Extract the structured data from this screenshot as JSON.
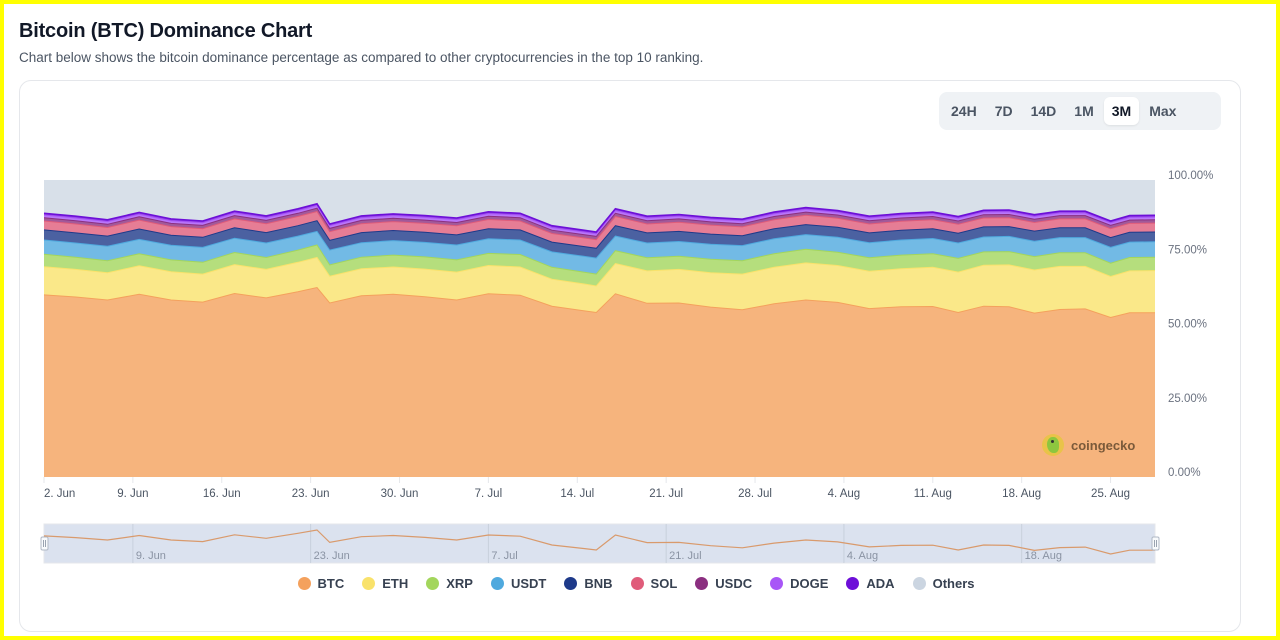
{
  "header": {
    "title": "Bitcoin (BTC) Dominance Chart",
    "subtitle": "Chart below shows the bitcoin dominance percentage as compared to other cryptocurrencies in the top 10 ranking."
  },
  "range_buttons": [
    {
      "label": "24H",
      "active": false
    },
    {
      "label": "7D",
      "active": false
    },
    {
      "label": "14D",
      "active": false
    },
    {
      "label": "1M",
      "active": false
    },
    {
      "label": "3M",
      "active": true
    },
    {
      "label": "Max",
      "active": false
    }
  ],
  "watermark": {
    "icon": "coingecko-logo-icon",
    "text": "coingecko"
  },
  "navigator": {
    "labels": [
      "9. Jun",
      "23. Jun",
      "7. Jul",
      "21. Jul",
      "4. Aug",
      "18. Aug"
    ],
    "range_start_fraction": 0.0,
    "range_end_fraction": 1.0
  },
  "chart_data": {
    "type": "area",
    "stacked": true,
    "title": "Bitcoin (BTC) Dominance Chart",
    "xlabel": "",
    "ylabel": "",
    "ylim": [
      0,
      100
    ],
    "y_ticks": [
      "0.00%",
      "25.00%",
      "50.00%",
      "75.00%",
      "100.00%"
    ],
    "y_tick_values": [
      0,
      25,
      50,
      75,
      100
    ],
    "x_ticks": [
      "2. Jun",
      "9. Jun",
      "16. Jun",
      "23. Jun",
      "30. Jun",
      "7. Jul",
      "14. Jul",
      "21. Jul",
      "28. Jul",
      "4. Aug",
      "11. Aug",
      "18. Aug",
      "25. Aug"
    ],
    "x_tick_days": [
      0,
      7,
      14,
      21,
      28,
      35,
      42,
      49,
      56,
      63,
      70,
      77,
      84
    ],
    "x_range_days": [
      0,
      87.5
    ],
    "grid": false,
    "legend_position": "bottom-center",
    "x_days": [
      0,
      2.5,
      5,
      7.5,
      10,
      12.5,
      15,
      17.5,
      20,
      21.5,
      22.5,
      25,
      27.5,
      30,
      32.5,
      35,
      37.5,
      40,
      42.5,
      43.5,
      45,
      47.5,
      50,
      52.5,
      55,
      57.5,
      60,
      62.5,
      65,
      67.5,
      70,
      72,
      74,
      76,
      78,
      80,
      82,
      84,
      85.5,
      87.5
    ],
    "series": [
      {
        "name": "BTC",
        "color": "#f4a15d",
        "values": [
          61.3,
          60.6,
          59.6,
          61.5,
          59.6,
          58.9,
          61.8,
          60.3,
          62.4,
          63.8,
          58.6,
          61.0,
          61.5,
          60.7,
          59.6,
          61.7,
          61.2,
          57.5,
          56.0,
          55.4,
          61.7,
          58.5,
          58.6,
          57.2,
          56.3,
          58.3,
          59.6,
          58.8,
          56.7,
          57.3,
          57.4,
          55.4,
          57.5,
          57.3,
          55.2,
          56.4,
          56.6,
          53.7,
          55.3,
          55.3
        ]
      },
      {
        "name": "ETH",
        "color": "#f9e26b",
        "values": [
          9.5,
          9.3,
          9.2,
          9.6,
          9.5,
          9.4,
          9.7,
          9.6,
          9.9,
          10.1,
          9.0,
          9.1,
          9.2,
          9.3,
          9.4,
          9.5,
          9.5,
          9.1,
          9.0,
          8.9,
          10.2,
          10.9,
          11.3,
          11.6,
          12.0,
          12.3,
          12.5,
          12.4,
          12.6,
          12.8,
          13.2,
          13.6,
          13.8,
          14.1,
          14.5,
          14.5,
          14.3,
          13.8,
          14.1,
          14.2
        ]
      },
      {
        "name": "XRP",
        "color": "#a3d65c",
        "values": [
          4.2,
          4.1,
          4.0,
          4.1,
          4.0,
          4.0,
          4.1,
          4.0,
          4.1,
          4.2,
          3.8,
          3.9,
          4.0,
          4.1,
          4.1,
          4.1,
          4.2,
          4.0,
          4.0,
          4.0,
          4.3,
          4.4,
          4.4,
          4.5,
          4.5,
          4.6,
          4.6,
          4.5,
          4.5,
          4.6,
          4.6,
          4.6,
          4.5,
          4.5,
          4.5,
          4.6,
          4.6,
          4.5,
          4.5,
          4.5
        ]
      },
      {
        "name": "USDT",
        "color": "#4fa9de",
        "values": [
          4.8,
          4.8,
          4.9,
          4.8,
          4.9,
          5.0,
          4.8,
          4.9,
          4.7,
          4.6,
          5.0,
          4.9,
          4.9,
          4.9,
          5.0,
          4.9,
          4.9,
          5.2,
          5.3,
          5.4,
          4.9,
          5.0,
          5.0,
          5.1,
          5.1,
          5.0,
          4.9,
          5.0,
          5.1,
          5.1,
          5.1,
          5.2,
          5.0,
          5.1,
          5.2,
          5.1,
          5.1,
          5.3,
          5.2,
          5.2
        ]
      },
      {
        "name": "BNB",
        "color": "#1e3a8a",
        "values": [
          3.4,
          3.4,
          3.4,
          3.5,
          3.4,
          3.4,
          3.5,
          3.5,
          3.5,
          3.6,
          3.3,
          3.4,
          3.4,
          3.4,
          3.4,
          3.4,
          3.4,
          3.3,
          3.3,
          3.3,
          3.5,
          3.4,
          3.4,
          3.4,
          3.3,
          3.4,
          3.4,
          3.4,
          3.3,
          3.3,
          3.3,
          3.3,
          3.4,
          3.3,
          3.4,
          3.3,
          3.3,
          3.3,
          3.3,
          3.3
        ]
      },
      {
        "name": "SOL",
        "color": "#e05c7a",
        "values": [
          3.0,
          3.0,
          2.9,
          3.0,
          2.9,
          2.9,
          3.0,
          3.0,
          3.1,
          3.1,
          2.9,
          3.0,
          3.0,
          3.0,
          3.1,
          3.1,
          3.0,
          2.9,
          2.9,
          2.9,
          3.1,
          3.0,
          3.1,
          3.0,
          3.0,
          3.0,
          3.1,
          3.0,
          3.0,
          3.0,
          3.0,
          3.0,
          3.0,
          3.0,
          2.9,
          3.0,
          3.0,
          3.0,
          3.0,
          3.0
        ]
      },
      {
        "name": "USDC",
        "color": "#8b2f80",
        "values": [
          1.1,
          1.1,
          1.1,
          1.1,
          1.1,
          1.1,
          1.1,
          1.1,
          1.1,
          1.1,
          1.1,
          1.1,
          1.1,
          1.1,
          1.1,
          1.1,
          1.1,
          1.1,
          1.1,
          1.1,
          1.1,
          1.1,
          1.1,
          1.1,
          1.1,
          1.1,
          1.1,
          1.1,
          1.1,
          1.1,
          1.1,
          1.1,
          1.1,
          1.1,
          1.1,
          1.1,
          1.1,
          1.1,
          1.1,
          1.1
        ]
      },
      {
        "name": "DOGE",
        "color": "#a855f7",
        "values": [
          0.9,
          0.9,
          0.9,
          0.9,
          0.9,
          0.9,
          0.9,
          0.9,
          0.9,
          0.9,
          0.9,
          0.9,
          0.9,
          0.9,
          0.9,
          0.9,
          0.9,
          0.9,
          0.9,
          0.9,
          0.9,
          0.9,
          0.9,
          0.9,
          0.9,
          0.9,
          0.9,
          0.9,
          0.9,
          0.9,
          0.9,
          0.9,
          0.9,
          0.9,
          0.9,
          0.9,
          0.9,
          0.9,
          0.9,
          0.9
        ]
      },
      {
        "name": "ADA",
        "color": "#6d0fd8",
        "values": [
          0.6,
          0.6,
          0.6,
          0.6,
          0.6,
          0.6,
          0.6,
          0.6,
          0.6,
          0.6,
          0.6,
          0.6,
          0.6,
          0.6,
          0.6,
          0.6,
          0.6,
          0.6,
          0.6,
          0.6,
          0.6,
          0.6,
          0.6,
          0.6,
          0.6,
          0.6,
          0.6,
          0.6,
          0.6,
          0.6,
          0.6,
          0.6,
          0.6,
          0.6,
          0.6,
          0.6,
          0.6,
          0.6,
          0.6,
          0.6
        ]
      },
      {
        "name": "Others",
        "color": "#cbd5e1",
        "values": [
          11.2,
          12.2,
          13.4,
          10.9,
          13.1,
          13.8,
          10.5,
          12.6,
          9.7,
          8.0,
          14.8,
          12.5,
          11.9,
          12.5,
          12.8,
          11.1,
          11.6,
          15.8,
          17.3,
          18.0,
          10.7,
          11.7,
          10.6,
          11.6,
          12.2,
          10.3,
          9.3,
          10.3,
          11.6,
          10.7,
          10.3,
          11.7,
          10.6,
          10.5,
          12.1,
          10.9,
          11.0,
          14.2,
          12.0,
          11.9
        ]
      }
    ]
  }
}
